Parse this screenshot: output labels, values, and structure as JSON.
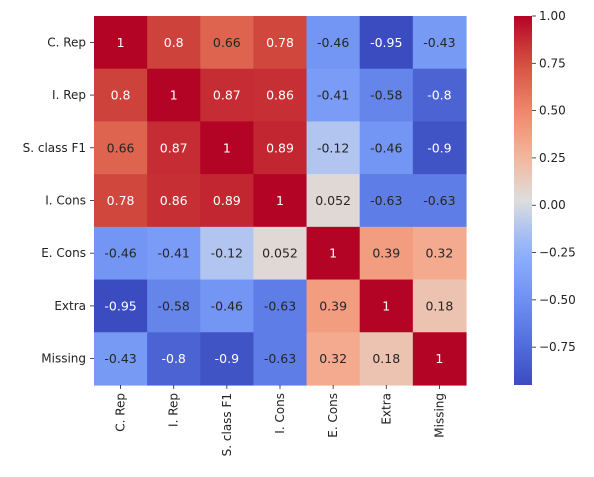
{
  "chart_data": {
    "type": "heatmap",
    "title": "",
    "xlabel": "",
    "ylabel": "",
    "colormap": "coolwarm",
    "vmin": -0.95,
    "vmax": 1.0,
    "labels": [
      "C. Rep",
      "I. Rep",
      "S. class F1",
      "I. Cons",
      "E. Cons",
      "Extra",
      "Missing"
    ],
    "matrix": [
      [
        1,
        0.8,
        0.66,
        0.78,
        -0.46,
        -0.95,
        -0.43
      ],
      [
        0.8,
        1,
        0.87,
        0.86,
        -0.41,
        -0.58,
        -0.8
      ],
      [
        0.66,
        0.87,
        1,
        0.89,
        -0.12,
        -0.46,
        -0.9
      ],
      [
        0.78,
        0.86,
        0.89,
        1,
        0.052,
        -0.63,
        -0.63
      ],
      [
        -0.46,
        -0.41,
        -0.12,
        0.052,
        1,
        0.39,
        0.32
      ],
      [
        -0.95,
        -0.58,
        -0.46,
        -0.63,
        0.39,
        1,
        0.18
      ],
      [
        -0.43,
        -0.8,
        -0.9,
        -0.63,
        0.32,
        0.18,
        1
      ]
    ],
    "cell_text": [
      [
        "1",
        "0.8",
        "0.66",
        "0.78",
        "-0.46",
        "-0.95",
        "-0.43"
      ],
      [
        "0.8",
        "1",
        "0.87",
        "0.86",
        "-0.41",
        "-0.58",
        "-0.8"
      ],
      [
        "0.66",
        "0.87",
        "1",
        "0.89",
        "-0.12",
        "-0.46",
        "-0.9"
      ],
      [
        "0.78",
        "0.86",
        "0.89",
        "1",
        "0.052",
        "-0.63",
        "-0.63"
      ],
      [
        "-0.46",
        "-0.41",
        "-0.12",
        "0.052",
        "1",
        "0.39",
        "0.32"
      ],
      [
        "-0.95",
        "-0.58",
        "-0.46",
        "-0.63",
        "0.39",
        "1",
        "0.18"
      ],
      [
        "-0.43",
        "-0.8",
        "-0.9",
        "-0.63",
        "0.32",
        "0.18",
        "1"
      ]
    ],
    "colorbar": {
      "ticks": [
        1.0,
        0.75,
        0.5,
        0.25,
        0.0,
        -0.25,
        -0.5,
        -0.75
      ],
      "tick_labels": [
        "1.00",
        "0.75",
        "0.50",
        "0.25",
        "0.00",
        "−0.25",
        "−0.50",
        "−0.75"
      ]
    },
    "legend": "colorbar-right",
    "grid": false
  }
}
